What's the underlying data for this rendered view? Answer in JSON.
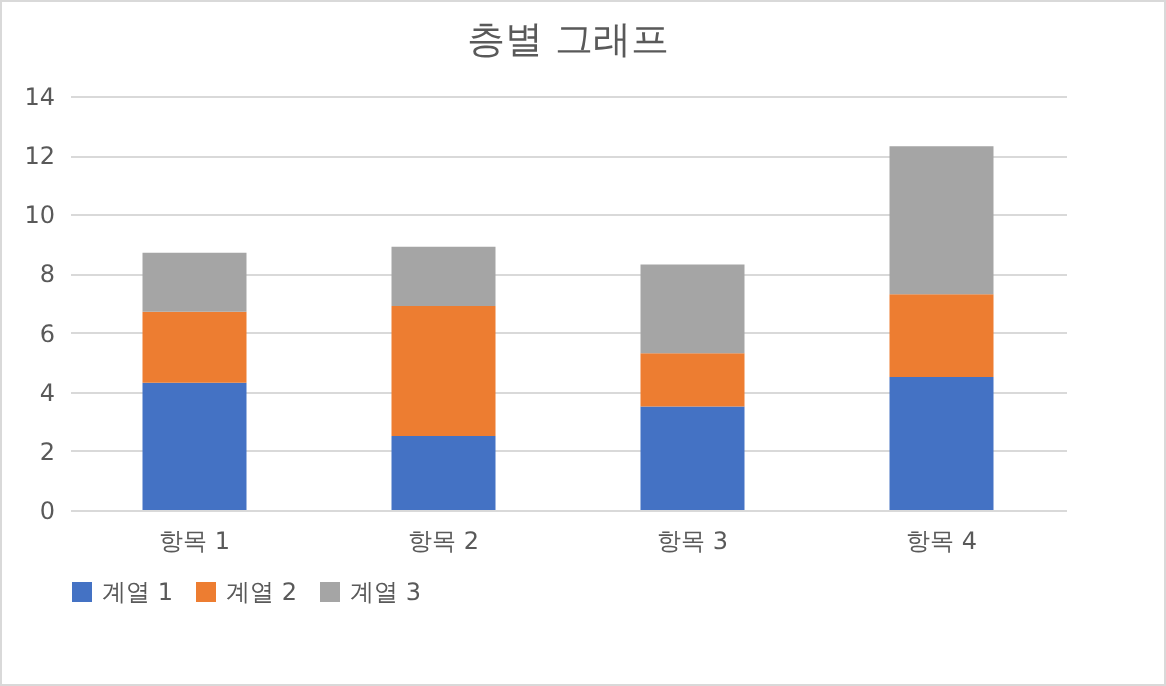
{
  "chart_data": {
    "type": "bar",
    "title": "층별 그래프",
    "stacked": true,
    "categories": [
      "항목 1",
      "항목 2",
      "항목 3",
      "항목 4"
    ],
    "series": [
      {
        "name": "계열 1",
        "color": "#4472c4",
        "values": [
          4.3,
          2.5,
          3.5,
          4.5
        ]
      },
      {
        "name": "계열 2",
        "color": "#ed7d31",
        "values": [
          2.4,
          4.4,
          1.8,
          2.8
        ]
      },
      {
        "name": "계열 3",
        "color": "#a5a5a5",
        "values": [
          2,
          2,
          3,
          5
        ]
      }
    ],
    "ylim": [
      0,
      14
    ],
    "yticks": [
      0,
      2,
      4,
      6,
      8,
      10,
      12,
      14
    ],
    "grid": "y",
    "legend": "bottom"
  }
}
